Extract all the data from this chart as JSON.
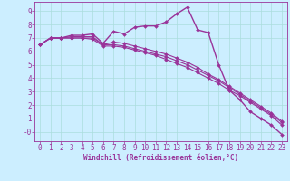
{
  "xlabel": "Windchill (Refroidissement éolien,°C)",
  "background_color": "#cceeff",
  "line_color": "#993399",
  "xlim": [
    -0.5,
    23.5
  ],
  "ylim": [
    -0.7,
    9.7
  ],
  "xticks": [
    0,
    1,
    2,
    3,
    4,
    5,
    6,
    7,
    8,
    9,
    10,
    11,
    12,
    13,
    14,
    15,
    16,
    17,
    18,
    19,
    20,
    21,
    22,
    23
  ],
  "ytick_vals": [
    0,
    1,
    2,
    3,
    4,
    5,
    6,
    7,
    8,
    9
  ],
  "ytick_labels": [
    "-0",
    "1",
    "2",
    "3",
    "4",
    "5",
    "6",
    "7",
    "8",
    "9"
  ],
  "series": [
    [
      6.5,
      7.0,
      7.0,
      7.2,
      7.2,
      7.3,
      6.6,
      7.5,
      7.3,
      7.8,
      7.9,
      7.9,
      8.2,
      8.8,
      9.3,
      7.6,
      7.4,
      5.0,
      3.1,
      2.4,
      1.5,
      1.0,
      0.5,
      -0.2
    ],
    [
      6.5,
      7.0,
      7.0,
      7.0,
      7.0,
      6.9,
      6.4,
      6.4,
      6.3,
      6.1,
      5.9,
      5.7,
      5.4,
      5.1,
      4.8,
      4.4,
      4.0,
      3.6,
      3.1,
      2.7,
      2.2,
      1.7,
      1.2,
      0.5
    ],
    [
      6.5,
      7.0,
      7.0,
      7.0,
      7.0,
      7.0,
      6.5,
      6.5,
      6.4,
      6.2,
      6.0,
      5.8,
      5.6,
      5.3,
      5.0,
      4.6,
      4.2,
      3.8,
      3.3,
      2.8,
      2.3,
      1.8,
      1.3,
      0.7
    ],
    [
      6.5,
      7.0,
      7.0,
      7.1,
      7.1,
      7.1,
      6.5,
      6.7,
      6.6,
      6.4,
      6.2,
      6.0,
      5.8,
      5.5,
      5.2,
      4.8,
      4.3,
      3.9,
      3.4,
      2.9,
      2.4,
      1.9,
      1.4,
      0.8
    ]
  ],
  "grid_color": "#aadddd",
  "tick_fontsize": 5.5,
  "xlabel_fontsize": 5.5
}
